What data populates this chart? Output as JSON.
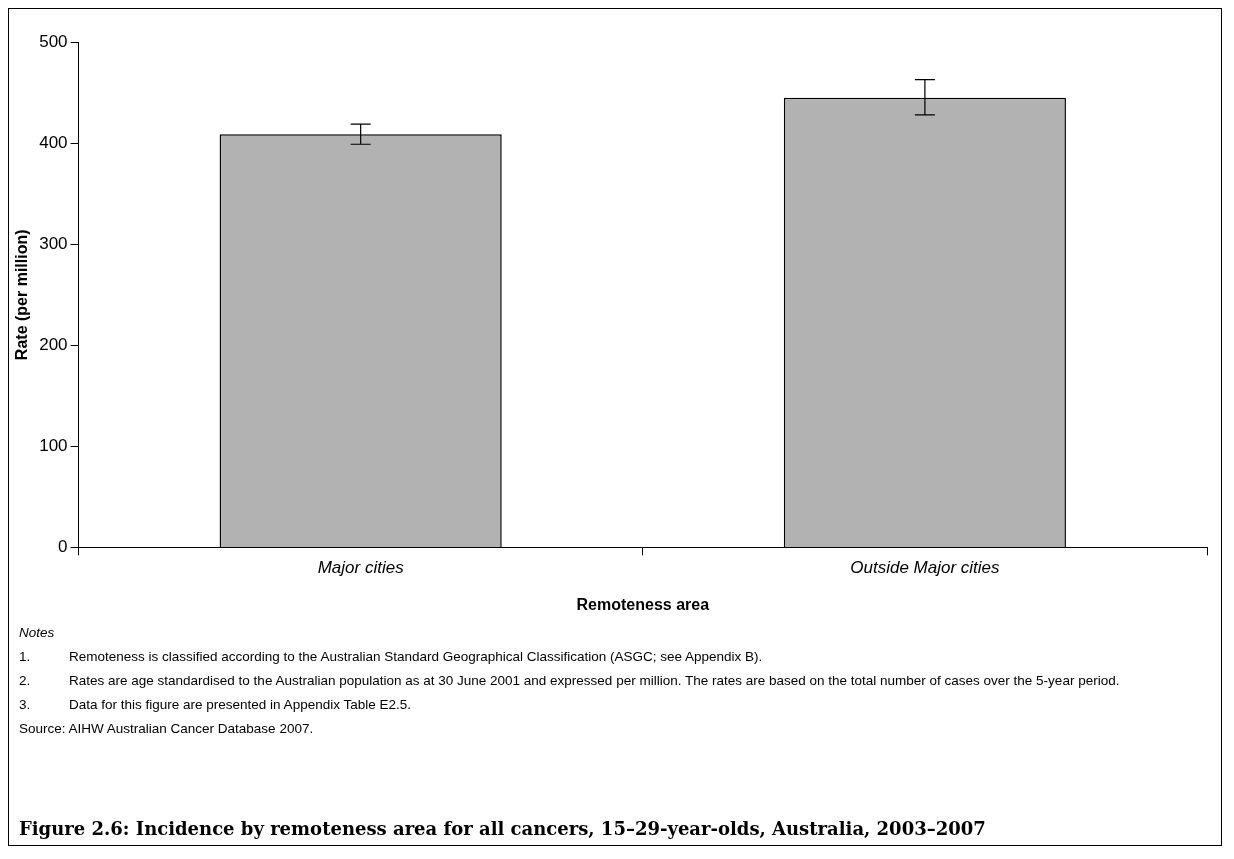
{
  "chart_data": {
    "type": "bar",
    "title": "Figure 2.6: Incidence by remoteness area for all cancers, 15–29-year-olds, Australia, 2003–2007",
    "xlabel": "Remoteness area",
    "ylabel": "Rate (per million)",
    "categories": [
      "Major cities",
      "Outside Major cities"
    ],
    "values": [
      409,
      445
    ],
    "errors": [
      [
        399,
        419
      ],
      [
        428,
        463
      ]
    ],
    "color": "#b2b2b2",
    "ylim": [
      0,
      500
    ],
    "yticks": [
      0,
      100,
      200,
      300,
      400,
      500
    ],
    "grid": false,
    "legend": false,
    "annotations": [
      "Notes",
      "1. Remoteness is classified according to the Australian Standard Geographical Classification (ASGC; see Appendix B).",
      "2. Rates are age standardised to the Australian population as at 30 June 2001 and expressed per million. The rates are based on the total number of cases over the 5-year period.",
      "3. Data for this figure are presented in Appendix Table E2.5.",
      "Source: AIHW Australian Cancer Database 2007."
    ]
  }
}
